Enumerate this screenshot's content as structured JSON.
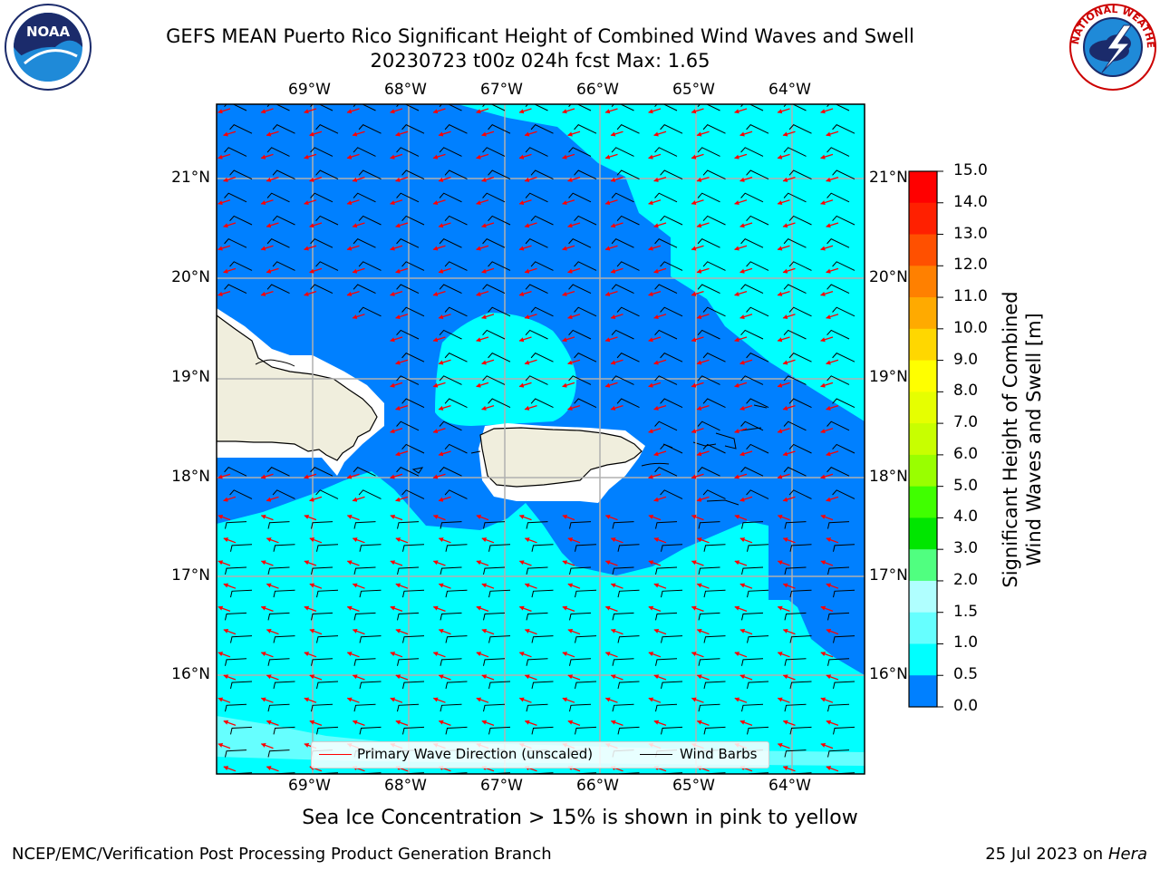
{
  "title": {
    "line1": "GEFS MEAN Puerto Rico Significant Height of Combined Wind Waves and Swell",
    "line2": "20230723 t00z 024h fcst   Max: 1.65"
  },
  "logos": {
    "noaa_text": "NOAA",
    "nws_text": "NATIONAL WEATHER SERVICE"
  },
  "map": {
    "lon_labels": [
      "69°W",
      "68°W",
      "67°W",
      "66°W",
      "65°W",
      "64°W"
    ],
    "lat_labels": [
      "21°N",
      "20°N",
      "19°N",
      "18°N",
      "17°N",
      "16°N"
    ],
    "colors": {
      "dark_blue": "#0080ff",
      "cyan": "#00ffff",
      "light_cyan": "#66ffff",
      "land": "#f0eedd",
      "wave_arrows": "#ff0000",
      "barbs": "#000000"
    }
  },
  "legend": {
    "wave_direction": "Primary Wave Direction (unscaled)",
    "wind_barbs": "Wind Barbs"
  },
  "colorbar": {
    "label_line1": "Significant Height of Combined",
    "label_line2": "Wind Waves and Swell [m]",
    "ticks": [
      "15.0",
      "14.0",
      "13.0",
      "12.0",
      "11.0",
      "10.0",
      "9.0",
      "8.0",
      "7.0",
      "6.0",
      "5.0",
      "4.0",
      "3.0",
      "2.0",
      "1.5",
      "1.0",
      "0.5",
      "0.0"
    ],
    "colors": [
      "#ff0000",
      "#ff2000",
      "#ff5000",
      "#ff8000",
      "#ffaa00",
      "#ffd700",
      "#ffff00",
      "#e6ff00",
      "#c8ff00",
      "#99ff00",
      "#40ff00",
      "#00e600",
      "#50ff80",
      "#b0ffff",
      "#66ffff",
      "#00ffff",
      "#0080ff",
      "#0000ff"
    ]
  },
  "note": "Sea Ice Concentration > 15% is shown in pink to yellow",
  "footer": {
    "left": "NCEP/EMC/Verification Post Processing Product Generation Branch",
    "right_prefix": "25 Jul 2023 on ",
    "right_machine": "Hera"
  }
}
